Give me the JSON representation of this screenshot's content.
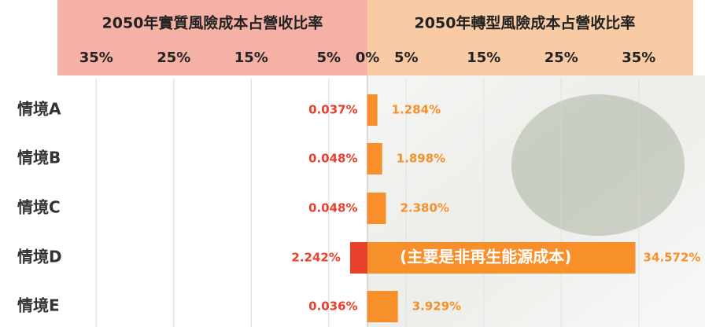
{
  "chart_data": {
    "type": "butterfly",
    "categories": [
      "情境A",
      "情境B",
      "情境C",
      "情境D",
      "情境E"
    ],
    "series": [
      {
        "name": "2050年實質風險成本占營收比率",
        "side": "left",
        "color": "#e8412c",
        "header_color": "#f5b1a5",
        "values": [
          0.037,
          0.048,
          0.048,
          2.242,
          0.036
        ],
        "value_labels": [
          "0.037%",
          "0.048%",
          "0.048%",
          "2.242%",
          "0.036%"
        ]
      },
      {
        "name": "2050年轉型風險成本占營收比率",
        "side": "right",
        "color": "#f7902a",
        "header_color": "#f9cba4",
        "values": [
          1.284,
          1.898,
          2.38,
          34.572,
          3.929
        ],
        "value_labels": [
          "1.284%",
          "1.898%",
          "2.380%",
          "34.572%",
          "3.929%"
        ]
      }
    ],
    "xlim": [
      0,
      40
    ],
    "left_xticks": [
      {
        "value": 35,
        "label": "35%"
      },
      {
        "value": 25,
        "label": "25%"
      },
      {
        "value": 15,
        "label": "15%"
      },
      {
        "value": 5,
        "label": "5%"
      }
    ],
    "right_xticks": [
      {
        "value": 0,
        "label": "0%"
      },
      {
        "value": 5,
        "label": "5%"
      },
      {
        "value": 15,
        "label": "15%"
      },
      {
        "value": 25,
        "label": "25%"
      },
      {
        "value": 35,
        "label": "35%"
      }
    ],
    "annotation": {
      "text": "(主要是非再生能源成本)",
      "category_index": 3
    },
    "grid": true
  }
}
